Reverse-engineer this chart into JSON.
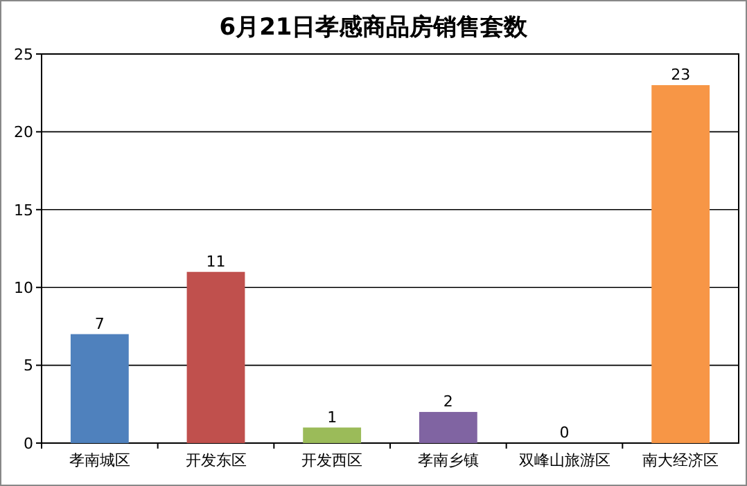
{
  "chart_data": {
    "type": "bar",
    "title": "6月21日孝感商品房销售套数",
    "categories": [
      "孝南城区",
      "开发东区",
      "开发西区",
      "孝南乡镇",
      "双峰山旅游区",
      "南大经济区"
    ],
    "values": [
      7,
      11,
      1,
      2,
      0,
      23
    ],
    "colors": [
      "#4f81bd",
      "#c0504d",
      "#9bbb59",
      "#8064a2",
      "#4bacc6",
      "#f79646"
    ],
    "ylim": [
      0,
      25
    ],
    "yticks": [
      0,
      5,
      10,
      15,
      20,
      25
    ],
    "grid": "y",
    "data_labels": true
  }
}
